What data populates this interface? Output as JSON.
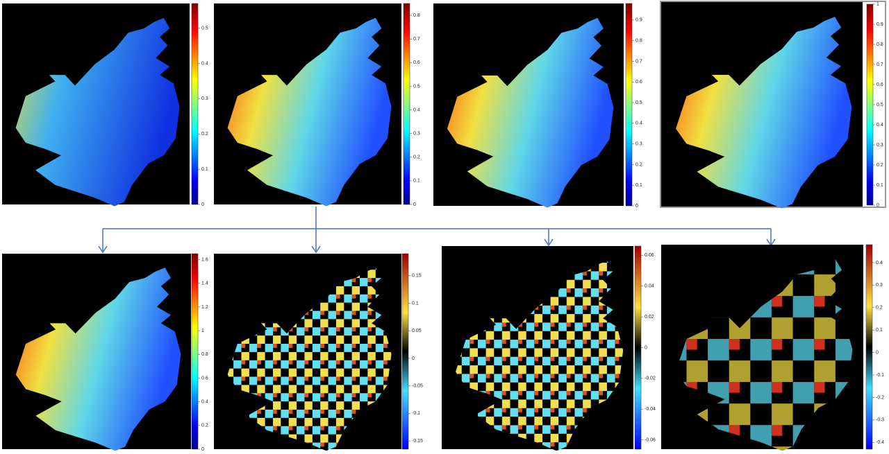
{
  "panels": [
    {
      "colormap": "jet",
      "clim": [
        0,
        0.57
      ],
      "ticks": [
        0,
        0.1,
        0.2,
        0.3,
        0.4,
        0.5
      ]
    },
    {
      "colormap": "jet",
      "clim": [
        0,
        0.85
      ],
      "ticks": [
        0,
        0.1,
        0.2,
        0.3,
        0.4,
        0.5,
        0.6,
        0.7,
        0.8
      ]
    },
    {
      "colormap": "jet",
      "clim": [
        0,
        0.98
      ],
      "ticks": [
        0,
        0.1,
        0.2,
        0.3,
        0.4,
        0.5,
        0.6,
        0.7,
        0.8,
        0.9
      ]
    },
    {
      "colormap": "jet",
      "clim": [
        0,
        1
      ],
      "ticks": [
        0,
        0.1,
        0.2,
        0.3,
        0.4,
        0.5,
        0.6,
        0.7,
        0.8,
        0.9,
        1
      ]
    },
    {
      "colormap": "jet",
      "clim": [
        0,
        1.65
      ],
      "ticks": [
        0,
        0.2,
        0.4,
        0.6,
        0.8,
        1,
        1.2,
        1.4,
        1.6
      ]
    },
    {
      "colormap": "diverging",
      "clim": [
        -0.165,
        0.19
      ],
      "ticks": [
        -0.15,
        -0.1,
        -0.05,
        0,
        0.05,
        0.1,
        0.15
      ]
    },
    {
      "colormap": "diverging",
      "clim": [
        -0.066,
        0.066
      ],
      "ticks": [
        -0.06,
        -0.04,
        -0.02,
        0,
        0.02,
        0.04,
        0.06
      ]
    },
    {
      "colormap": "diverging",
      "clim": [
        -0.43,
        0.48
      ],
      "ticks": [
        -0.4,
        -0.3,
        -0.2,
        -0.1,
        0,
        0.1,
        0.2,
        0.3,
        0.4
      ]
    }
  ]
}
